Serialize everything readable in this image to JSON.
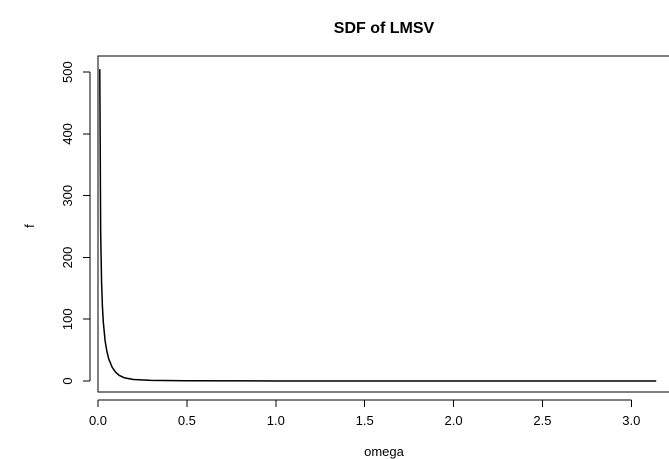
{
  "chart_data": {
    "type": "line",
    "title": "SDF of LMSV",
    "xlabel": "omega",
    "ylabel": "f",
    "xlim": [
      0,
      3.15
    ],
    "ylim": [
      0,
      510
    ],
    "xticks": [
      "0.0",
      "0.5",
      "1.0",
      "1.5",
      "2.0",
      "2.5",
      "3.0"
    ],
    "yticks": [
      "0",
      "100",
      "200",
      "300",
      "400",
      "500"
    ],
    "series": [
      {
        "x": [
          0.01,
          0.015,
          0.02,
          0.025,
          0.03,
          0.04,
          0.05,
          0.06,
          0.08,
          0.1,
          0.12,
          0.15,
          0.2,
          0.3,
          0.5,
          1.0,
          1.5,
          2.0,
          2.5,
          3.14
        ],
        "values": [
          505,
          240,
          160,
          120,
          95,
          65,
          48,
          36,
          22,
          14,
          9,
          5,
          2.5,
          1,
          0.3,
          0.05,
          0.02,
          0.01,
          0.005,
          0.002
        ]
      }
    ]
  }
}
